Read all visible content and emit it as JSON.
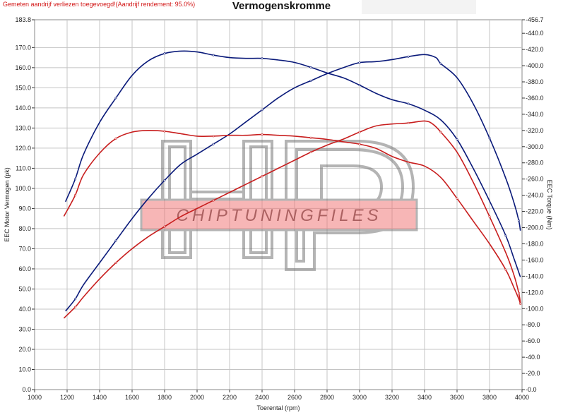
{
  "header": {
    "note": "Gemeten aandrijf verliezen toegevoegd!(Aandrijf rendement: 95.0%)",
    "title": "Vermogenskromme"
  },
  "watermark": {
    "text": "CHIPTUNINGFILES"
  },
  "colors": {
    "tuned": "#0a1a7a",
    "stock": "#c81e1e",
    "grid": "#c4c4c4",
    "plot_bg": "#ffffff"
  },
  "chart_data": {
    "type": "line",
    "title": "Vermogenskromme",
    "xlabel": "Toerental (rpm)",
    "ylabel": "EEC Motor Vermogen (pk)",
    "y2label": "EEC Torque (Nm)",
    "xlim": [
      1000,
      4000
    ],
    "ylim": [
      0,
      183.8
    ],
    "y2lim": [
      0,
      456.7
    ],
    "xticks": [
      1000,
      1200,
      1400,
      1600,
      1800,
      2000,
      2200,
      2400,
      2600,
      2800,
      3000,
      3200,
      3400,
      3600,
      3800,
      4000
    ],
    "yticks": [
      0,
      10,
      20,
      30,
      40,
      50,
      60,
      70,
      80,
      90,
      100,
      110,
      120,
      130,
      140,
      150,
      160,
      170,
      183.8
    ],
    "ytick_labels": [
      "0.0",
      "10.0",
      "20.0",
      "30.0",
      "40.0",
      "50.0",
      "60.0",
      "70.0",
      "80.0",
      "90.0",
      "100.0",
      "110.0",
      "120.0",
      "130.0",
      "140.0",
      "150.0",
      "160.0",
      "170.0",
      "183.8"
    ],
    "y2ticks": [
      0,
      20,
      40,
      60,
      80,
      100,
      120,
      140,
      160,
      180,
      200,
      220,
      240,
      260,
      280,
      300,
      320,
      340,
      360,
      380,
      400,
      420,
      440,
      456.7
    ],
    "y2tick_labels": [
      "0.0",
      "20.0",
      "40.0",
      "60.0",
      "80.0",
      "100.0",
      "120.0",
      "140.0",
      "160.0",
      "180.0",
      "200.0",
      "220.0",
      "240.0",
      "260.0",
      "280.0",
      "300.0",
      "320.0",
      "340.0",
      "360.0",
      "380.0",
      "400.0",
      "420.0",
      "440.0",
      "456.7"
    ],
    "grid": true,
    "series": [
      {
        "axis": "left",
        "color": "#0a1a7a",
        "points": [
          [
            1190,
            39
          ],
          [
            1250,
            45
          ],
          [
            1300,
            52
          ],
          [
            1400,
            63
          ],
          [
            1500,
            74
          ],
          [
            1600,
            85
          ],
          [
            1700,
            95
          ],
          [
            1800,
            104
          ],
          [
            1900,
            112
          ],
          [
            2000,
            117
          ],
          [
            2100,
            122
          ],
          [
            2200,
            127
          ],
          [
            2300,
            133
          ],
          [
            2400,
            139
          ],
          [
            2500,
            145
          ],
          [
            2600,
            150
          ],
          [
            2700,
            153.5
          ],
          [
            2800,
            157
          ],
          [
            2900,
            160
          ],
          [
            3000,
            162.5
          ],
          [
            3100,
            163
          ],
          [
            3200,
            164
          ],
          [
            3300,
            165.5
          ],
          [
            3400,
            166.5
          ],
          [
            3470,
            165
          ],
          [
            3500,
            162
          ],
          [
            3600,
            155
          ],
          [
            3700,
            142
          ],
          [
            3800,
            125
          ],
          [
            3900,
            105
          ],
          [
            3950,
            93
          ],
          [
            3980,
            84
          ],
          [
            3990,
            79
          ]
        ]
      },
      {
        "axis": "right",
        "color": "#0a1a7a",
        "points": [
          [
            1190,
            232
          ],
          [
            1250,
            260
          ],
          [
            1300,
            290
          ],
          [
            1400,
            330
          ],
          [
            1500,
            360
          ],
          [
            1600,
            388
          ],
          [
            1700,
            406
          ],
          [
            1800,
            415
          ],
          [
            1900,
            418
          ],
          [
            2000,
            417
          ],
          [
            2100,
            413
          ],
          [
            2200,
            410
          ],
          [
            2300,
            409
          ],
          [
            2400,
            409
          ],
          [
            2500,
            407
          ],
          [
            2600,
            404
          ],
          [
            2700,
            398
          ],
          [
            2800,
            391
          ],
          [
            2900,
            385
          ],
          [
            3000,
            376
          ],
          [
            3100,
            366
          ],
          [
            3200,
            358
          ],
          [
            3300,
            353
          ],
          [
            3400,
            345
          ],
          [
            3500,
            333
          ],
          [
            3600,
            309
          ],
          [
            3700,
            273
          ],
          [
            3800,
            233
          ],
          [
            3900,
            190
          ],
          [
            3950,
            162
          ],
          [
            3990,
            139
          ]
        ]
      },
      {
        "axis": "left",
        "color": "#c81e1e",
        "points": [
          [
            1180,
            35.5
          ],
          [
            1250,
            41
          ],
          [
            1300,
            46
          ],
          [
            1400,
            55
          ],
          [
            1500,
            63
          ],
          [
            1600,
            70
          ],
          [
            1700,
            76
          ],
          [
            1800,
            81
          ],
          [
            1900,
            86
          ],
          [
            2000,
            90
          ],
          [
            2100,
            94
          ],
          [
            2200,
            98
          ],
          [
            2300,
            102
          ],
          [
            2400,
            106
          ],
          [
            2500,
            110
          ],
          [
            2600,
            114
          ],
          [
            2700,
            118
          ],
          [
            2800,
            121.5
          ],
          [
            2900,
            124.5
          ],
          [
            3000,
            128
          ],
          [
            3100,
            131
          ],
          [
            3200,
            132
          ],
          [
            3300,
            132.5
          ],
          [
            3400,
            133.5
          ],
          [
            3450,
            132
          ],
          [
            3500,
            128
          ],
          [
            3600,
            118
          ],
          [
            3700,
            103
          ],
          [
            3800,
            86
          ],
          [
            3900,
            68
          ],
          [
            3950,
            57
          ],
          [
            3980,
            48
          ],
          [
            3990,
            43
          ]
        ]
      },
      {
        "axis": "right",
        "color": "#c81e1e",
        "points": [
          [
            1180,
            214
          ],
          [
            1250,
            240
          ],
          [
            1300,
            265
          ],
          [
            1400,
            292
          ],
          [
            1500,
            310
          ],
          [
            1600,
            318
          ],
          [
            1700,
            320
          ],
          [
            1800,
            319
          ],
          [
            1900,
            316
          ],
          [
            2000,
            313
          ],
          [
            2100,
            313
          ],
          [
            2200,
            314
          ],
          [
            2300,
            314
          ],
          [
            2400,
            315
          ],
          [
            2500,
            314
          ],
          [
            2600,
            313
          ],
          [
            2700,
            311
          ],
          [
            2800,
            309
          ],
          [
            2900,
            306
          ],
          [
            3000,
            303
          ],
          [
            3100,
            298
          ],
          [
            3200,
            288
          ],
          [
            3300,
            281
          ],
          [
            3400,
            276
          ],
          [
            3500,
            262
          ],
          [
            3600,
            236
          ],
          [
            3700,
            208
          ],
          [
            3800,
            180
          ],
          [
            3900,
            148
          ],
          [
            3950,
            126
          ],
          [
            3980,
            112
          ],
          [
            3990,
            106
          ]
        ]
      }
    ]
  }
}
